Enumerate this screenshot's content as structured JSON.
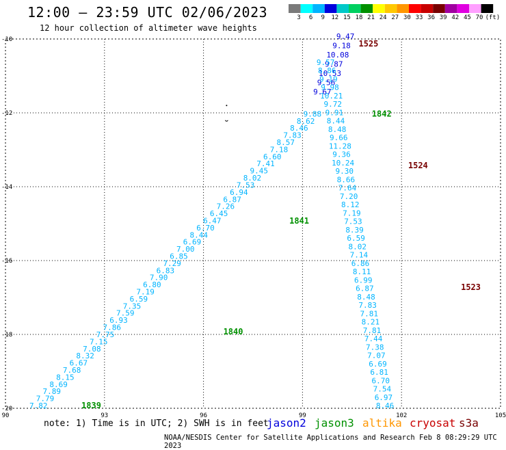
{
  "header": {
    "title": "12:00 – 23:59 UTC 02/06/2023",
    "subtitle": "12 hour collection of altimeter wave heights"
  },
  "colorbar": {
    "colors": [
      "#7a7a7a",
      "#00ffff",
      "#00b4ff",
      "#0000dc",
      "#00c8c8",
      "#00d060",
      "#009000",
      "#ffff00",
      "#ffc800",
      "#ff9600",
      "#ff0000",
      "#c80000",
      "#780000",
      "#a000a0",
      "#e000e0",
      "#ffa0ff",
      "#000000"
    ],
    "labels": [
      "3",
      "6",
      "9",
      "12",
      "15",
      "18",
      "21",
      "24",
      "27",
      "30",
      "33",
      "36",
      "39",
      "42",
      "45",
      "70",
      "(ft)"
    ]
  },
  "axes": {
    "x_ticks": [
      "90",
      "93",
      "96",
      "99",
      "102",
      "105"
    ],
    "x_values": [
      90,
      93,
      96,
      99,
      102,
      105
    ],
    "y_ticks": [
      "-10",
      "-12",
      "-14",
      "-16",
      "-18",
      "-20"
    ],
    "y_values": [
      -10,
      -12,
      -14,
      -16,
      -18,
      -20
    ],
    "xlim": [
      90,
      105
    ],
    "ylim": [
      -20,
      -10
    ]
  },
  "footer": {
    "note": "note: 1) Time is in UTC; 2) SWH is in feet",
    "credit": "NOAA/NESDIS Center for Satellite Applications and Research   Feb  8 08:29:29 UTC 2023"
  },
  "satellites": [
    {
      "name": "jason2",
      "color": "#0000dc"
    },
    {
      "name": "jason3",
      "color": "#009000"
    },
    {
      "name": "altika",
      "color": "#ff9600"
    },
    {
      "name": "cryosat",
      "color": "#c80000"
    },
    {
      "name": "s3a",
      "color": "#780000"
    }
  ],
  "tracks": [
    {
      "color": "#00b4ff",
      "lon_start": 91.0,
      "lat_start": -20.0,
      "lon_end": 99.3,
      "lat_end": -12.1,
      "values": [
        "7.82",
        "7.79",
        "7.89",
        "8.69",
        "8.15",
        "7.68",
        "6.67",
        "8.32",
        "7.08",
        "7.15",
        "7.75",
        "7.86",
        "6.93",
        "7.59",
        "7.35",
        "6.59",
        "7.19",
        "6.80",
        "7.90",
        "6.83",
        "7.29",
        "6.85",
        "7.00",
        "6.69",
        "8.44",
        "6.70",
        "6.47",
        "6.45",
        "7.26",
        "6.87",
        "6.94",
        "7.53",
        "8.02",
        "9.45",
        "7.41",
        "6.60",
        "7.18",
        "8.57",
        "7.83",
        "8.46",
        "8.62",
        "9.88"
      ]
    },
    {
      "color": "#0000dc",
      "lon_start": 99.6,
      "lat_start": -11.5,
      "lon_end": 100.3,
      "lat_end": -10.0,
      "values": [
        "9.67",
        "9.56",
        "10.53",
        "9.87",
        "10.08",
        "9.18",
        "9.47"
      ]
    },
    {
      "color": "#00b4ff",
      "lon_start": 99.7,
      "lat_start": -10.7,
      "lon_end": 101.5,
      "lat_end": -20.0,
      "values": [
        "9.57",
        "8.86",
        "9.19",
        "9.98",
        "10.21",
        "9.72",
        "9.91",
        "8.44",
        "8.48",
        "9.66",
        "11.28",
        "9.36",
        "10.24",
        "9.30",
        "8.66",
        "7.64",
        "7.20",
        "8.12",
        "7.19",
        "7.53",
        "8.39",
        "6.59",
        "8.02",
        "7.14",
        "6.86",
        "8.11",
        "6.99",
        "6.87",
        "8.48",
        "7.83",
        "7.81",
        "8.21",
        "7.81",
        "7.44",
        "7.38",
        "7.07",
        "6.69",
        "6.81",
        "6.70",
        "7.54",
        "6.97",
        "8.46"
      ]
    }
  ],
  "time_labels": [
    {
      "text": "1839",
      "color": "#009000",
      "lon": 92.6,
      "lat": -20.0
    },
    {
      "text": "1840",
      "color": "#009000",
      "lon": 96.9,
      "lat": -18.0
    },
    {
      "text": "1841",
      "color": "#009000",
      "lon": 98.9,
      "lat": -15.0
    },
    {
      "text": "1842",
      "color": "#009000",
      "lon": 101.4,
      "lat": -12.1
    },
    {
      "text": "1525",
      "color": "#780000",
      "lon": 101.0,
      "lat": -10.2
    },
    {
      "text": "1524",
      "color": "#780000",
      "lon": 102.5,
      "lat": -13.5
    },
    {
      "text": "1523",
      "color": "#780000",
      "lon": 104.1,
      "lat": -16.8
    }
  ]
}
